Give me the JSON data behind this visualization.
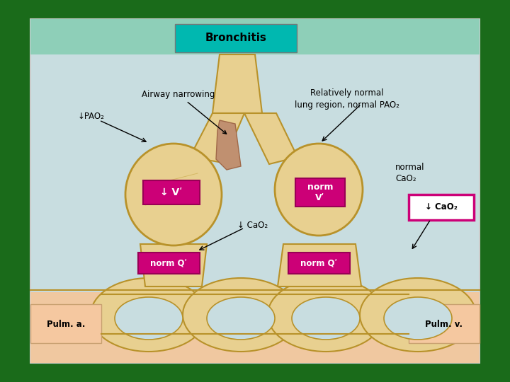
{
  "bg_outer": "#1a6b1a",
  "bg_inner": "#c8dde0",
  "bg_top_banner": "#8ecfb8",
  "title": "Bronchitis",
  "title_bg": "#00b8b0",
  "airway_fill": "#e8d090",
  "airway_fill2": "#dfc880",
  "airway_narrowing_fill": "#c09070",
  "pulm_bar_fill": "#f0c8a0",
  "pulm_label_box": "#f5c8a0",
  "box_magenta": "#cc0077",
  "box_outline_magenta": "#cc0077",
  "box_text_color": "#ffffff",
  "airway_ec": "#b8922a",
  "label_airway_narrowing": "Airway narrowing",
  "label_relatively_normal": "Relatively normal\nlung region, normal PAO₂",
  "label_pao2_down": "↓PAO₂",
  "label_cao2_center": "↓ CaO₂",
  "label_normal_cao2": "normal\nCaO₂",
  "label_cao2_box": "↓ CaO₂",
  "label_pulm_a": "Pulm. a.",
  "label_pulm_v": "Pulm. v.",
  "label_v_down": "↓ Vʹ",
  "label_norm_v": "norm\nVʹ",
  "label_norm_q_left": "norm Qʹ",
  "label_norm_q_right": "norm Qʹ"
}
